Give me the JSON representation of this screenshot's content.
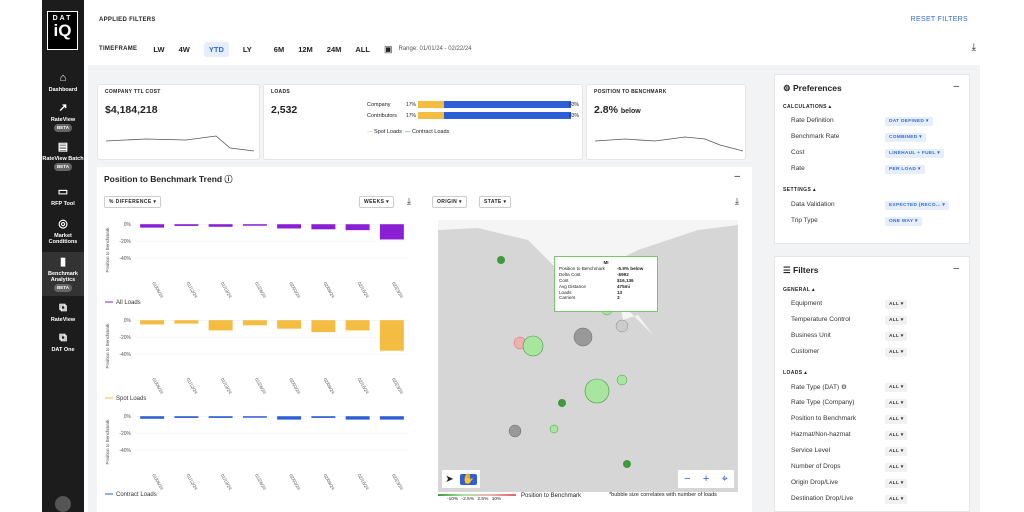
{
  "sidebar": {
    "logo_top": "DAT",
    "logo_bottom": "iQ",
    "items": [
      {
        "label": "Dashboard",
        "icon": "dashboard-icon"
      },
      {
        "label": "RateView",
        "badge": "BETA",
        "icon": "rateview-icon"
      },
      {
        "label": "RateView Batch",
        "badge": "BETA",
        "icon": "file-icon"
      },
      {
        "label": "RFP Tool",
        "icon": "briefcase-icon"
      },
      {
        "label": "Market Conditions",
        "icon": "compass-icon"
      },
      {
        "label": "Benchmark Analytics",
        "badge": "BETA",
        "icon": "bar-chart-icon"
      },
      {
        "label": "RateView",
        "icon": "external-link-icon"
      },
      {
        "label": "DAT One",
        "icon": "external-link-icon"
      }
    ]
  },
  "header": {
    "applied_filters": "APPLIED FILTERS",
    "reset": "RESET FILTERS",
    "timeframe_label": "TIMEFRAME",
    "timeframes": [
      "LW",
      "4W",
      "YTD",
      "LY",
      "6M",
      "12M",
      "24M",
      "ALL"
    ],
    "selected": "YTD",
    "range": "Range: 01/01/24 - 02/22/24"
  },
  "kpis": {
    "company_cost": {
      "title": "COMPANY TTL COST",
      "value": "$4,184,218"
    },
    "loads": {
      "title": "LOADS",
      "value": "2,532",
      "bars": [
        {
          "label": "Company",
          "left": "17%",
          "right": "83%",
          "spot": 0.17
        },
        {
          "label": "Contributors",
          "left": "17%",
          "right": "83%",
          "spot": 0.17
        }
      ],
      "legend": [
        "Spot Loads",
        "Contract Loads"
      ]
    },
    "position": {
      "title": "POSITION TO BENCHMARK",
      "value": "2.8%",
      "suffix": "below"
    }
  },
  "trend": {
    "title": "Position to Benchmark Trend",
    "metric_dd": "% DIFFERENCE",
    "period_dd": "WEEKS",
    "origin_dd": "ORIGIN",
    "state_dd": "STATE"
  },
  "chart_data": [
    {
      "type": "bar",
      "name": "All Loads",
      "ylabel": "Position to Benchmark",
      "yticks": [
        "0%",
        "-20%",
        "-40%"
      ],
      "ylim": [
        -60,
        5
      ],
      "categories": [
        "01/05/24",
        "01/12/24",
        "01/19/24",
        "01/26/24",
        "02/02/24",
        "02/09/24",
        "02/16/24",
        "02/23/24"
      ],
      "values": [
        -4,
        -2,
        -3,
        -1,
        -5,
        -6,
        -7,
        -18
      ],
      "color": "#8b1fd4"
    },
    {
      "type": "bar",
      "name": "Spot Loads",
      "ylabel": "Position to Benchmark",
      "yticks": [
        "0%",
        "-20%",
        "-40%"
      ],
      "ylim": [
        -60,
        5
      ],
      "categories": [
        "01/05/24",
        "01/12/24",
        "01/19/24",
        "01/26/24",
        "02/02/24",
        "02/09/24",
        "02/16/24",
        "02/23/24"
      ],
      "values": [
        -5,
        -4,
        -12,
        -6,
        -10,
        -14,
        -12,
        -36
      ],
      "color": "#f5bc42"
    },
    {
      "type": "bar",
      "name": "Contract Loads",
      "ylabel": "Position to Benchmark",
      "yticks": [
        "0%",
        "-20%",
        "-40%"
      ],
      "ylim": [
        -60,
        5
      ],
      "categories": [
        "01/05/24",
        "01/12/24",
        "01/19/24",
        "01/26/24",
        "02/02/24",
        "02/09/24",
        "02/16/24",
        "02/23/24"
      ],
      "values": [
        -3,
        -2,
        -2,
        -1,
        -4,
        -2,
        -4,
        -4
      ],
      "color": "#2e5fd6"
    }
  ],
  "map": {
    "tooltip": {
      "state": "MI",
      "rows": [
        [
          "Position to Benchmark",
          "-5.9% below"
        ],
        [
          "Delta Cost",
          "-$992"
        ],
        [
          "Cost",
          "$16,136"
        ],
        [
          "Avg Distance",
          "475mi"
        ],
        [
          "Loads",
          "13"
        ],
        [
          "Carriers",
          "3"
        ]
      ]
    },
    "legend_ticks": [
      "-10%",
      "-2.5%",
      "2.5%",
      "10%"
    ],
    "legend_title": "Position to Benchmark",
    "note": "*bubble size correlates with number of loads"
  },
  "preferences": {
    "title": "Preferences",
    "calc_label": "CALCULATIONS",
    "rows": [
      [
        "Rate Definition",
        "DAT DEFINED"
      ],
      [
        "Benchmark Rate",
        "COMBINED"
      ],
      [
        "Cost",
        "LINEHAUL + FUEL"
      ],
      [
        "Rate",
        "PER LOAD"
      ]
    ],
    "settings_label": "SETTINGS",
    "settings": [
      [
        "Data Validation",
        "EXPECTED (RECO..."
      ],
      [
        "Trip Type",
        "ONE WAY"
      ]
    ]
  },
  "filters": {
    "title": "Filters",
    "general_label": "GENERAL",
    "general": [
      "Equipment",
      "Temperature Control",
      "Business Unit",
      "Customer"
    ],
    "loads_label": "LOADS",
    "loads": [
      "Rate Type (DAT)",
      "Rate Type (Company)",
      "Position to Benchmark",
      "Hazmat/Non-hazmat",
      "Service Level",
      "Number of Drops",
      "Origin Drop/Live",
      "Destination Drop/Live"
    ],
    "all": "ALL"
  }
}
